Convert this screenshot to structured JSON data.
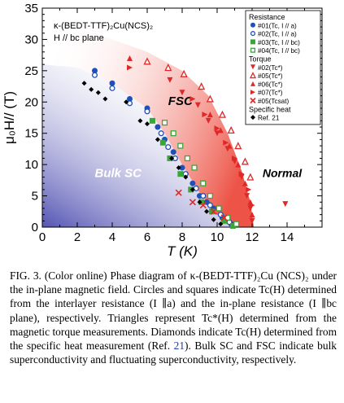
{
  "chart_data": {
    "type": "scatter",
    "title_lines": [
      "κ-(BEDT-TTF)₂Cu(NCS)₂",
      "H // bc plane"
    ],
    "xlabel": "T (K)",
    "ylabel": "μ₀H// (T)",
    "xlim": [
      0,
      16
    ],
    "ylim": [
      0,
      35
    ],
    "xticks": [
      0,
      2,
      4,
      6,
      8,
      10,
      12,
      14
    ],
    "yticks": [
      0,
      5,
      10,
      15,
      20,
      25,
      30,
      35
    ],
    "region_labels": {
      "bulk": "Bulk SC",
      "fsc": "FSC",
      "normal": "Normal"
    },
    "legend": {
      "placement": "top-right",
      "groups": [
        {
          "title": "Resistance",
          "items": [
            {
              "label": "#01(Tc, I // a)",
              "marker": "circle-filled",
              "color": "#1f4fb8"
            },
            {
              "label": "#02(Tc, I // a)",
              "marker": "circle-open",
              "color": "#1f4fb8"
            },
            {
              "label": "#03(Tc, I // bc)",
              "marker": "square-filled",
              "color": "#3aa63a"
            },
            {
              "label": "#04(Tc, I // bc)",
              "marker": "square-open",
              "color": "#3aa63a"
            }
          ]
        },
        {
          "title": "Torque",
          "items": [
            {
              "label": "#02(Tc*)",
              "marker": "tri-down-filled",
              "color": "#e02828"
            },
            {
              "label": "#05(Tc*)",
              "marker": "tri-up-open",
              "color": "#e02828"
            },
            {
              "label": "#06(Tc*)",
              "marker": "tri-up-filled",
              "color": "#e02828"
            },
            {
              "label": "#07(Tc*)",
              "marker": "tri-right-filled",
              "color": "#e02828"
            },
            {
              "label": "#05(Tcsat)",
              "marker": "cross",
              "color": "#e02828"
            }
          ]
        },
        {
          "title": "Specific heat",
          "items": [
            {
              "label": "Ref. 21",
              "marker": "diamond-filled",
              "color": "#000000"
            }
          ]
        }
      ]
    },
    "series": [
      {
        "name": "#01(Tc, I // a)",
        "marker": "circle-filled",
        "color": "#1f4fb8",
        "points": [
          [
            3.0,
            25.0
          ],
          [
            4.0,
            23.0
          ],
          [
            5.0,
            20.5
          ],
          [
            6.0,
            19.0
          ],
          [
            6.6,
            16.0
          ],
          [
            7.0,
            14.0
          ],
          [
            7.5,
            12.0
          ],
          [
            8.0,
            9.5
          ],
          [
            8.6,
            7.0
          ],
          [
            9.0,
            5.0
          ],
          [
            9.4,
            4.0
          ],
          [
            9.8,
            3.0
          ],
          [
            10.3,
            1.5
          ],
          [
            10.8,
            0.5
          ]
        ]
      },
      {
        "name": "#02(Tc, I // a)",
        "marker": "circle-open",
        "color": "#1f4fb8",
        "points": [
          [
            3.0,
            24.3
          ],
          [
            4.0,
            22.2
          ],
          [
            5.0,
            19.8
          ],
          [
            6.0,
            18.5
          ],
          [
            6.8,
            15.0
          ],
          [
            7.2,
            12.8
          ],
          [
            7.6,
            11.0
          ],
          [
            8.2,
            8.5
          ],
          [
            8.8,
            6.2
          ],
          [
            9.2,
            5.0
          ],
          [
            9.6,
            3.5
          ],
          [
            10.2,
            2.0
          ],
          [
            10.7,
            0.8
          ]
        ]
      },
      {
        "name": "#03(Tc, I // bc)",
        "marker": "square-filled",
        "color": "#3aa63a",
        "points": [
          [
            6.3,
            17.0
          ],
          [
            6.9,
            13.5
          ],
          [
            7.3,
            11.0
          ],
          [
            7.9,
            8.5
          ],
          [
            8.5,
            6.0
          ],
          [
            9.1,
            4.0
          ],
          [
            9.7,
            2.5
          ],
          [
            10.4,
            1.0
          ],
          [
            10.9,
            0.2
          ]
        ]
      },
      {
        "name": "#04(Tc, I // bc)",
        "marker": "square-open",
        "color": "#3aa63a",
        "points": [
          [
            7.0,
            16.7
          ],
          [
            7.5,
            15.0
          ],
          [
            7.9,
            13.0
          ],
          [
            8.3,
            11.0
          ],
          [
            8.7,
            9.5
          ],
          [
            9.2,
            7.0
          ],
          [
            9.6,
            5.0
          ],
          [
            10.1,
            3.0
          ],
          [
            10.6,
            1.5
          ],
          [
            11.1,
            0.5
          ]
        ]
      },
      {
        "name": "#02(Tc*)",
        "marker": "tri-down-filled",
        "color": "#e02828",
        "points": [
          [
            7.3,
            23.5
          ],
          [
            8.0,
            21.5
          ],
          [
            8.9,
            19.5
          ],
          [
            9.5,
            17.0
          ],
          [
            10.0,
            15.0
          ],
          [
            10.6,
            12.5
          ],
          [
            11.0,
            10.5
          ],
          [
            11.4,
            8.0
          ],
          [
            11.7,
            5.0
          ],
          [
            11.9,
            3.0
          ],
          [
            12.0,
            1.0
          ],
          [
            13.9,
            3.7
          ]
        ]
      },
      {
        "name": "#05(Tc*)",
        "marker": "tri-up-open",
        "color": "#e02828",
        "points": [
          [
            6.0,
            26.5
          ],
          [
            7.2,
            25.5
          ],
          [
            8.1,
            24.5
          ],
          [
            9.1,
            22.5
          ],
          [
            9.6,
            20.5
          ],
          [
            10.3,
            18.0
          ],
          [
            10.8,
            15.5
          ],
          [
            11.2,
            13.0
          ],
          [
            11.6,
            10.5
          ],
          [
            11.9,
            8.0
          ]
        ]
      },
      {
        "name": "#06(Tc*)",
        "marker": "tri-up-filled",
        "color": "#e02828",
        "points": [
          [
            5.0,
            27.0
          ],
          [
            9.6,
            18.0
          ],
          [
            10.2,
            15.5
          ],
          [
            10.7,
            13.0
          ],
          [
            11.2,
            10.0
          ],
          [
            11.6,
            7.0
          ],
          [
            11.9,
            4.0
          ],
          [
            12.0,
            2.0
          ]
        ]
      },
      {
        "name": "#07(Tc*)",
        "marker": "tri-right-filled",
        "color": "#e02828",
        "points": [
          [
            5.0,
            25.5
          ],
          [
            8.6,
            20.5
          ],
          [
            9.3,
            18.0
          ],
          [
            10.0,
            15.8
          ],
          [
            10.5,
            13.5
          ],
          [
            11.0,
            11.0
          ],
          [
            11.4,
            8.5
          ],
          [
            11.8,
            6.0
          ],
          [
            12.0,
            3.5
          ]
        ]
      },
      {
        "name": "#05(Tcsat)",
        "marker": "cross",
        "color": "#e02828",
        "points": [
          [
            7.8,
            5.5
          ],
          [
            8.6,
            4.0
          ],
          [
            9.2,
            3.5
          ],
          [
            9.8,
            2.5
          ],
          [
            10.4,
            1.5
          ]
        ]
      },
      {
        "name": "Ref. 21",
        "marker": "diamond-filled",
        "color": "#000000",
        "points": [
          [
            2.4,
            23.0
          ],
          [
            2.8,
            22.0
          ],
          [
            3.2,
            21.5
          ],
          [
            3.6,
            20.5
          ],
          [
            4.8,
            20.0
          ],
          [
            5.6,
            17.0
          ],
          [
            6.0,
            16.5
          ],
          [
            6.6,
            14.0
          ],
          [
            7.4,
            11.0
          ],
          [
            7.8,
            9.5
          ],
          [
            8.2,
            8.0
          ],
          [
            8.6,
            6.0
          ],
          [
            9.0,
            4.0
          ],
          [
            9.4,
            2.5
          ],
          [
            9.8,
            1.2
          ],
          [
            10.2,
            0.5
          ]
        ]
      }
    ],
    "shading": {
      "bulk_color": "#4b4bb0",
      "fsc_color": "#ec4a3c"
    }
  },
  "caption": {
    "p1": "FIG. 3. (Color online) Phase diagram of κ-(BEDT-TTF)₂Cu (NCS)₂ under the in-plane magnetic field. Circles and squares indicate Tc(H) determined from the interlayer resistance (I ∥a) and the in-plane resistance (I ∥bc plane), respectively. Triangles represent Tc*(H) determined from the magnetic torque measurements. Diamonds indicate Tc(H) determined from the specific heat measurement (Ref. ",
    "ref": "21",
    "p2": "). Bulk SC and FSC indicate bulk superconductivity and fluctuating superconductivity, respectively."
  }
}
